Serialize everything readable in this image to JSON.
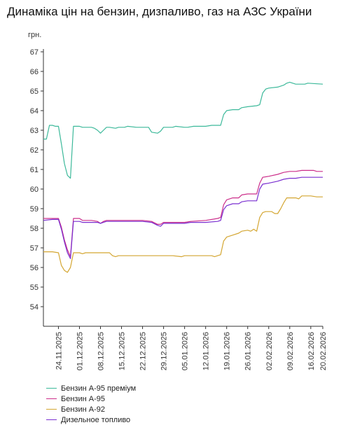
{
  "chart_data": {
    "type": "line",
    "title": "Динаміка цін на бензин, дизпаливо, газ на АЗС України",
    "ylabel": "грн.",
    "xlabel": "",
    "ylim": [
      53,
      67
    ],
    "yticks": [
      54,
      55,
      56,
      57,
      58,
      59,
      60,
      61,
      62,
      63,
      64,
      65,
      66,
      67
    ],
    "xrange": [
      "2025-11-19",
      "2026-02-20"
    ],
    "xticks": [
      "24.11.2025",
      "01.12.2025",
      "08.12.2025",
      "15.12.2025",
      "22.12.2025",
      "29.12.2025",
      "05.01.2026",
      "12.01.2026",
      "19.01.2026",
      "26.01.2026",
      "02.02.2026",
      "09.02.2026",
      "16.02.2026",
      "20.02.2026"
    ],
    "xtick_dates": [
      "2025-11-24",
      "2025-12-01",
      "2025-12-08",
      "2025-12-15",
      "2025-12-22",
      "2025-12-29",
      "2026-01-05",
      "2026-01-12",
      "2026-01-19",
      "2026-01-26",
      "2026-02-02",
      "2026-02-09",
      "2026-02-16",
      "2026-02-20"
    ],
    "grid": false,
    "legend_position": "bottom-left",
    "series": [
      {
        "name": "Бензин А-95 преміум",
        "color": "#3cb99a",
        "points": [
          [
            "2025-11-19",
            62.55
          ],
          [
            "2025-11-20",
            62.55
          ],
          [
            "2025-11-21",
            63.25
          ],
          [
            "2025-11-22",
            63.25
          ],
          [
            "2025-11-23",
            63.2
          ],
          [
            "2025-11-24",
            63.2
          ],
          [
            "2025-11-25",
            62.3
          ],
          [
            "2025-11-26",
            61.3
          ],
          [
            "2025-11-27",
            60.7
          ],
          [
            "2025-11-28",
            60.55
          ],
          [
            "2025-11-29",
            63.2
          ],
          [
            "2025-11-30",
            63.2
          ],
          [
            "2025-12-01",
            63.2
          ],
          [
            "2025-12-02",
            63.15
          ],
          [
            "2025-12-03",
            63.15
          ],
          [
            "2025-12-04",
            63.15
          ],
          [
            "2025-12-05",
            63.15
          ],
          [
            "2025-12-06",
            63.1
          ],
          [
            "2025-12-07",
            63.0
          ],
          [
            "2025-12-08",
            62.85
          ],
          [
            "2025-12-09",
            63.0
          ],
          [
            "2025-12-10",
            63.15
          ],
          [
            "2025-12-11",
            63.15
          ],
          [
            "2025-12-13",
            63.1
          ],
          [
            "2025-12-14",
            63.15
          ],
          [
            "2025-12-16",
            63.15
          ],
          [
            "2025-12-17",
            63.2
          ],
          [
            "2025-12-20",
            63.15
          ],
          [
            "2025-12-22",
            63.15
          ],
          [
            "2025-12-24",
            63.15
          ],
          [
            "2025-12-25",
            62.9
          ],
          [
            "2025-12-27",
            62.85
          ],
          [
            "2025-12-28",
            62.95
          ],
          [
            "2025-12-29",
            63.15
          ],
          [
            "2026-01-01",
            63.15
          ],
          [
            "2026-01-02",
            63.2
          ],
          [
            "2026-01-05",
            63.15
          ],
          [
            "2026-01-06",
            63.15
          ],
          [
            "2026-01-08",
            63.2
          ],
          [
            "2026-01-12",
            63.2
          ],
          [
            "2026-01-14",
            63.25
          ],
          [
            "2026-01-17",
            63.25
          ],
          [
            "2026-01-18",
            63.8
          ],
          [
            "2026-01-19",
            64.0
          ],
          [
            "2026-01-21",
            64.05
          ],
          [
            "2026-01-23",
            64.05
          ],
          [
            "2026-01-24",
            64.15
          ],
          [
            "2026-01-26",
            64.2
          ],
          [
            "2026-01-29",
            64.25
          ],
          [
            "2026-01-30",
            64.3
          ],
          [
            "2026-01-31",
            64.9
          ],
          [
            "2026-02-01",
            65.1
          ],
          [
            "2026-02-02",
            65.15
          ],
          [
            "2026-02-05",
            65.2
          ],
          [
            "2026-02-07",
            65.3
          ],
          [
            "2026-02-08",
            65.4
          ],
          [
            "2026-02-09",
            65.45
          ],
          [
            "2026-02-11",
            65.35
          ],
          [
            "2026-02-14",
            65.35
          ],
          [
            "2026-02-15",
            65.4
          ],
          [
            "2026-02-20",
            65.35
          ]
        ]
      },
      {
        "name": "Бензин А-95",
        "color": "#cc2e8a",
        "points": [
          [
            "2025-11-19",
            58.5
          ],
          [
            "2025-11-22",
            58.5
          ],
          [
            "2025-11-24",
            58.5
          ],
          [
            "2025-11-25",
            58.05
          ],
          [
            "2025-11-26",
            57.4
          ],
          [
            "2025-11-27",
            56.9
          ],
          [
            "2025-11-28",
            56.55
          ],
          [
            "2025-11-29",
            58.5
          ],
          [
            "2025-11-30",
            58.5
          ],
          [
            "2025-12-01",
            58.5
          ],
          [
            "2025-12-02",
            58.4
          ],
          [
            "2025-12-05",
            58.4
          ],
          [
            "2025-12-07",
            58.35
          ],
          [
            "2025-12-08",
            58.25
          ],
          [
            "2025-12-09",
            58.35
          ],
          [
            "2025-12-10",
            58.4
          ],
          [
            "2025-12-14",
            58.4
          ],
          [
            "2025-12-18",
            58.4
          ],
          [
            "2025-12-22",
            58.4
          ],
          [
            "2025-12-25",
            58.35
          ],
          [
            "2025-12-27",
            58.2
          ],
          [
            "2025-12-28",
            58.2
          ],
          [
            "2025-12-29",
            58.3
          ],
          [
            "2026-01-01",
            58.3
          ],
          [
            "2026-01-05",
            58.3
          ],
          [
            "2026-01-07",
            58.35
          ],
          [
            "2026-01-12",
            58.4
          ],
          [
            "2026-01-16",
            58.5
          ],
          [
            "2026-01-17",
            58.55
          ],
          [
            "2026-01-18",
            59.2
          ],
          [
            "2026-01-19",
            59.45
          ],
          [
            "2026-01-21",
            59.55
          ],
          [
            "2026-01-23",
            59.55
          ],
          [
            "2026-01-24",
            59.7
          ],
          [
            "2026-01-26",
            59.75
          ],
          [
            "2026-01-29",
            59.75
          ],
          [
            "2026-01-30",
            60.3
          ],
          [
            "2026-01-31",
            60.6
          ],
          [
            "2026-02-02",
            60.65
          ],
          [
            "2026-02-05",
            60.75
          ],
          [
            "2026-02-07",
            60.85
          ],
          [
            "2026-02-09",
            60.9
          ],
          [
            "2026-02-11",
            60.9
          ],
          [
            "2026-02-13",
            60.95
          ],
          [
            "2026-02-17",
            60.95
          ],
          [
            "2026-02-18",
            60.9
          ],
          [
            "2026-02-20",
            60.9
          ]
        ]
      },
      {
        "name": "Бензин А-92",
        "color": "#d4a632",
        "points": [
          [
            "2025-11-19",
            56.8
          ],
          [
            "2025-11-22",
            56.8
          ],
          [
            "2025-11-24",
            56.75
          ],
          [
            "2025-11-25",
            56.1
          ],
          [
            "2025-11-26",
            55.85
          ],
          [
            "2025-11-27",
            55.75
          ],
          [
            "2025-11-28",
            56.0
          ],
          [
            "2025-11-29",
            56.75
          ],
          [
            "2025-11-30",
            56.75
          ],
          [
            "2025-12-01",
            56.75
          ],
          [
            "2025-12-02",
            56.7
          ],
          [
            "2025-12-03",
            56.75
          ],
          [
            "2025-12-05",
            56.75
          ],
          [
            "2025-12-07",
            56.75
          ],
          [
            "2025-12-09",
            56.75
          ],
          [
            "2025-12-11",
            56.75
          ],
          [
            "2025-12-12",
            56.6
          ],
          [
            "2025-12-13",
            56.55
          ],
          [
            "2025-12-14",
            56.6
          ],
          [
            "2025-12-17",
            56.6
          ],
          [
            "2025-12-20",
            56.6
          ],
          [
            "2025-12-23",
            56.6
          ],
          [
            "2026-01-01",
            56.6
          ],
          [
            "2026-01-04",
            56.55
          ],
          [
            "2026-01-05",
            56.6
          ],
          [
            "2026-01-08",
            56.6
          ],
          [
            "2026-01-12",
            56.6
          ],
          [
            "2026-01-14",
            56.6
          ],
          [
            "2026-01-15",
            56.55
          ],
          [
            "2026-01-17",
            56.65
          ],
          [
            "2026-01-18",
            57.35
          ],
          [
            "2026-01-19",
            57.55
          ],
          [
            "2026-01-21",
            57.65
          ],
          [
            "2026-01-23",
            57.75
          ],
          [
            "2026-01-24",
            57.85
          ],
          [
            "2026-01-26",
            57.9
          ],
          [
            "2026-01-27",
            57.85
          ],
          [
            "2026-01-28",
            57.95
          ],
          [
            "2026-01-29",
            57.85
          ],
          [
            "2026-01-30",
            58.55
          ],
          [
            "2026-01-31",
            58.8
          ],
          [
            "2026-02-01",
            58.85
          ],
          [
            "2026-02-03",
            58.85
          ],
          [
            "2026-02-04",
            58.75
          ],
          [
            "2026-02-05",
            58.75
          ],
          [
            "2026-02-06",
            59.0
          ],
          [
            "2026-02-07",
            59.3
          ],
          [
            "2026-02-08",
            59.55
          ],
          [
            "2026-02-11",
            59.55
          ],
          [
            "2026-02-12",
            59.5
          ],
          [
            "2026-02-13",
            59.65
          ],
          [
            "2026-02-16",
            59.65
          ],
          [
            "2026-02-18",
            59.6
          ],
          [
            "2026-02-20",
            59.6
          ]
        ]
      },
      {
        "name": "Дизельное топливо",
        "color": "#7a2fd0",
        "points": [
          [
            "2025-11-19",
            58.4
          ],
          [
            "2025-11-22",
            58.45
          ],
          [
            "2025-11-24",
            58.45
          ],
          [
            "2025-11-25",
            57.95
          ],
          [
            "2025-11-26",
            57.3
          ],
          [
            "2025-11-27",
            56.75
          ],
          [
            "2025-11-28",
            56.45
          ],
          [
            "2025-11-29",
            58.35
          ],
          [
            "2025-11-30",
            58.35
          ],
          [
            "2025-12-01",
            58.35
          ],
          [
            "2025-12-02",
            58.3
          ],
          [
            "2025-12-05",
            58.3
          ],
          [
            "2025-12-07",
            58.3
          ],
          [
            "2025-12-08",
            58.25
          ],
          [
            "2025-12-09",
            58.3
          ],
          [
            "2025-12-10",
            58.35
          ],
          [
            "2025-12-14",
            58.35
          ],
          [
            "2025-12-18",
            58.35
          ],
          [
            "2025-12-22",
            58.35
          ],
          [
            "2025-12-25",
            58.3
          ],
          [
            "2025-12-27",
            58.15
          ],
          [
            "2025-12-28",
            58.1
          ],
          [
            "2025-12-29",
            58.25
          ],
          [
            "2026-01-01",
            58.25
          ],
          [
            "2026-01-05",
            58.25
          ],
          [
            "2026-01-07",
            58.3
          ],
          [
            "2026-01-12",
            58.3
          ],
          [
            "2026-01-16",
            58.35
          ],
          [
            "2026-01-17",
            58.4
          ],
          [
            "2026-01-18",
            58.95
          ],
          [
            "2026-01-19",
            59.15
          ],
          [
            "2026-01-21",
            59.25
          ],
          [
            "2026-01-23",
            59.25
          ],
          [
            "2026-01-24",
            59.35
          ],
          [
            "2026-01-26",
            59.4
          ],
          [
            "2026-01-29",
            59.4
          ],
          [
            "2026-01-30",
            60.0
          ],
          [
            "2026-01-31",
            60.25
          ],
          [
            "2026-02-02",
            60.3
          ],
          [
            "2026-02-05",
            60.4
          ],
          [
            "2026-02-07",
            60.5
          ],
          [
            "2026-02-09",
            60.55
          ],
          [
            "2026-02-11",
            60.55
          ],
          [
            "2026-02-13",
            60.6
          ],
          [
            "2026-02-17",
            60.6
          ],
          [
            "2026-02-20",
            60.6
          ]
        ]
      }
    ]
  }
}
